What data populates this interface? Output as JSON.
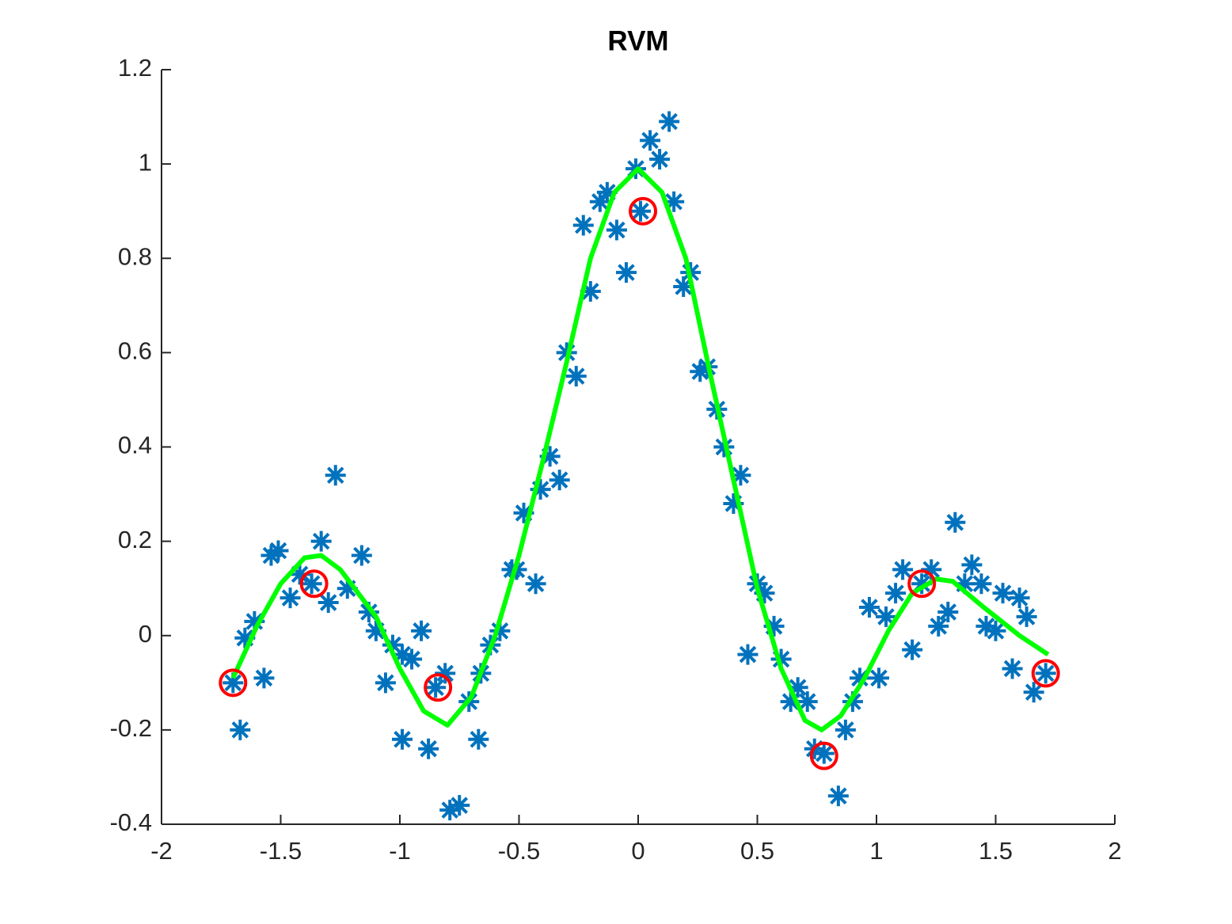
{
  "chart_data": {
    "type": "scatter",
    "title": "RVM",
    "xlim": [
      -2,
      2
    ],
    "ylim": [
      -0.4,
      1.2
    ],
    "xticks": [
      -2,
      -1.5,
      -1,
      -0.5,
      0,
      0.5,
      1,
      1.5,
      2
    ],
    "yticks": [
      -0.4,
      -0.2,
      0,
      0.2,
      0.4,
      0.6,
      0.8,
      1,
      1.2
    ],
    "series": [
      {
        "type": "scatter",
        "marker": "asterisk",
        "color": "#0072bd",
        "x": [
          -1.7,
          -1.67,
          -1.65,
          -1.61,
          -1.57,
          -1.54,
          -1.51,
          -1.46,
          -1.42,
          -1.37,
          -1.33,
          -1.3,
          -1.27,
          -1.22,
          -1.16,
          -1.13,
          -1.1,
          -1.06,
          -1.03,
          -0.99,
          -0.99,
          -0.95,
          -0.91,
          -0.88,
          -0.85,
          -0.81,
          -0.79,
          -0.75,
          -0.71,
          -0.67,
          -0.66,
          -0.62,
          -0.58,
          -0.53,
          -0.51,
          -0.48,
          -0.43,
          -0.41,
          -0.37,
          -0.33,
          -0.3,
          -0.26,
          -0.23,
          -0.2,
          -0.16,
          -0.13,
          -0.09,
          -0.05,
          -0.01,
          0.01,
          0.05,
          0.09,
          0.13,
          0.15,
          0.19,
          0.22,
          0.26,
          0.29,
          0.33,
          0.36,
          0.4,
          0.43,
          0.46,
          0.5,
          0.53,
          0.57,
          0.6,
          0.64,
          0.67,
          0.71,
          0.74,
          0.78,
          0.84,
          0.87,
          0.9,
          0.93,
          0.97,
          1.01,
          1.04,
          1.08,
          1.11,
          1.15,
          1.19,
          1.23,
          1.26,
          1.3,
          1.33,
          1.37,
          1.4,
          1.44,
          1.46,
          1.5,
          1.53,
          1.57,
          1.6,
          1.63,
          1.66,
          1.71
        ],
        "y": [
          -0.1,
          -0.2,
          -0.005,
          0.03,
          -0.09,
          0.17,
          0.18,
          0.08,
          0.13,
          0.11,
          0.2,
          0.07,
          0.34,
          0.1,
          0.17,
          0.05,
          0.01,
          -0.1,
          -0.02,
          -0.04,
          -0.22,
          -0.05,
          0.01,
          -0.24,
          -0.11,
          -0.08,
          -0.37,
          -0.36,
          -0.14,
          -0.22,
          -0.08,
          -0.02,
          0.01,
          0.14,
          0.14,
          0.26,
          0.11,
          0.31,
          0.38,
          0.33,
          0.6,
          0.55,
          0.87,
          0.73,
          0.92,
          0.94,
          0.86,
          0.77,
          0.99,
          0.9,
          1.05,
          1.01,
          1.09,
          0.92,
          0.74,
          0.77,
          0.56,
          0.57,
          0.48,
          0.4,
          0.28,
          0.34,
          -0.04,
          0.11,
          0.09,
          0.02,
          -0.05,
          -0.14,
          -0.11,
          -0.14,
          -0.24,
          -0.25,
          -0.34,
          -0.2,
          -0.14,
          -0.09,
          0.06,
          -0.09,
          0.04,
          0.09,
          0.14,
          -0.03,
          0.11,
          0.14,
          0.02,
          0.05,
          0.24,
          0.11,
          0.15,
          0.11,
          0.02,
          0.01,
          0.09,
          -0.07,
          0.08,
          0.04,
          -0.12,
          -0.08
        ]
      },
      {
        "type": "scatter",
        "marker": "circle",
        "color": "#ff0000",
        "x": [
          -1.7,
          -1.36,
          -0.84,
          0.02,
          0.78,
          1.19,
          1.71
        ],
        "y": [
          -0.1,
          0.11,
          -0.11,
          0.9,
          -0.255,
          0.11,
          -0.08
        ]
      },
      {
        "type": "line",
        "color": "#00ff00",
        "x": [
          -1.7,
          -1.6,
          -1.5,
          -1.4,
          -1.33,
          -1.25,
          -1.1,
          -1.0,
          -0.9,
          -0.8,
          -0.7,
          -0.6,
          -0.5,
          -0.4,
          -0.3,
          -0.2,
          -0.1,
          0.0,
          0.1,
          0.2,
          0.3,
          0.4,
          0.5,
          0.6,
          0.7,
          0.77,
          0.85,
          0.95,
          1.05,
          1.15,
          1.25,
          1.32,
          1.45,
          1.6,
          1.72
        ],
        "y": [
          -0.09,
          0.02,
          0.11,
          0.165,
          0.17,
          0.14,
          0.04,
          -0.07,
          -0.16,
          -0.19,
          -0.13,
          0.0,
          0.17,
          0.37,
          0.58,
          0.8,
          0.94,
          0.99,
          0.94,
          0.8,
          0.56,
          0.33,
          0.1,
          -0.07,
          -0.18,
          -0.2,
          -0.17,
          -0.09,
          0.01,
          0.09,
          0.12,
          0.115,
          0.06,
          0.0,
          -0.04
        ]
      }
    ]
  }
}
